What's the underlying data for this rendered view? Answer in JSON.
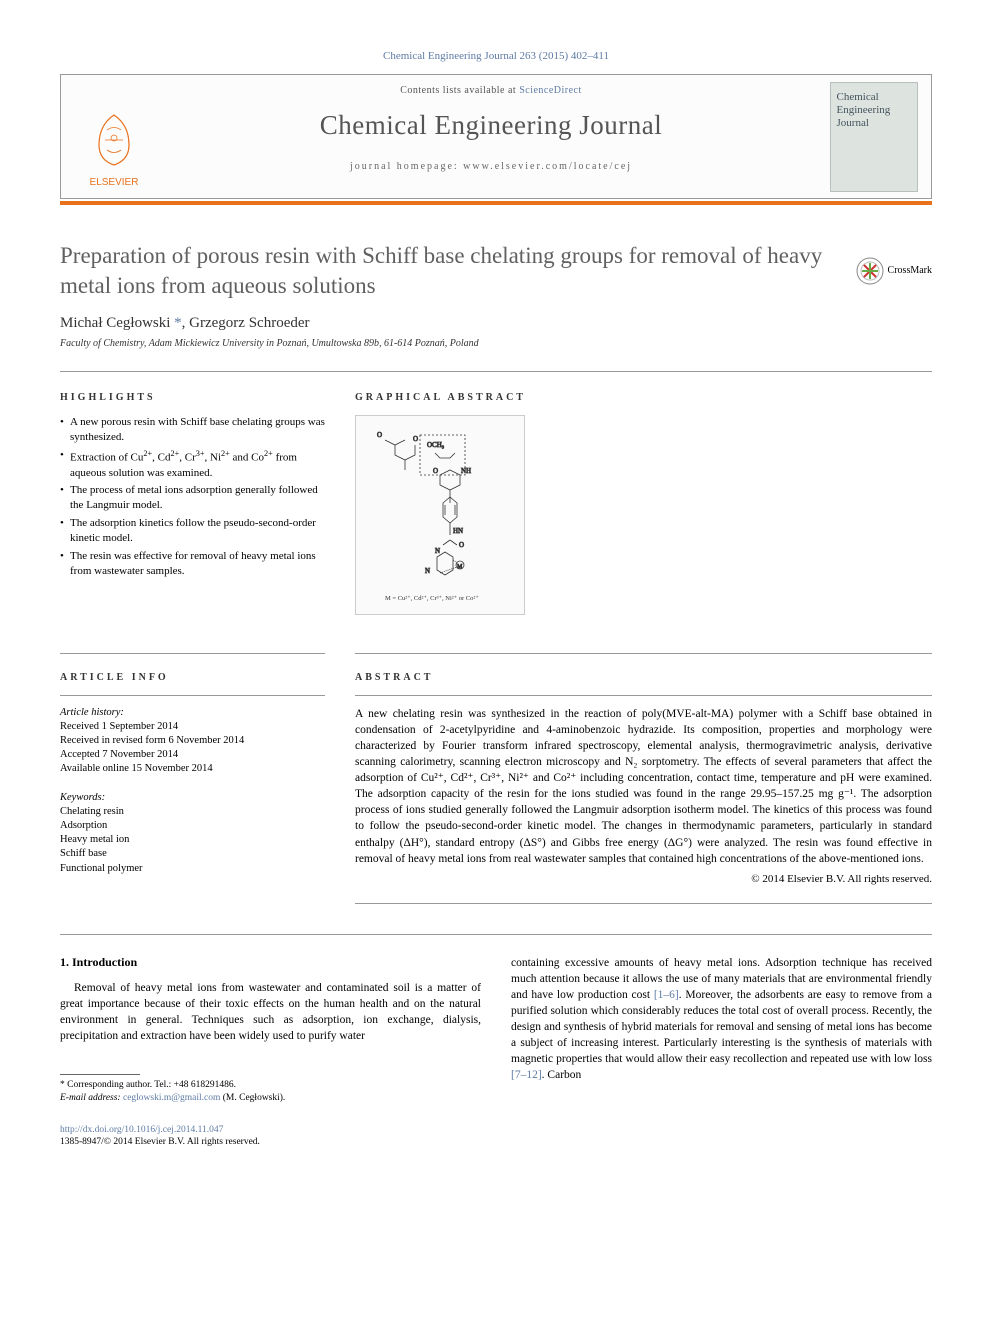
{
  "citation": "Chemical Engineering Journal 263 (2015) 402–411",
  "header": {
    "contents_prefix": "Contents lists available at ",
    "contents_link": "ScienceDirect",
    "journal_name": "Chemical Engineering Journal",
    "homepage_prefix": "journal homepage: ",
    "homepage_url": "www.elsevier.com/locate/cej",
    "publisher": "ELSEVIER",
    "cover_lines": [
      "Chemical",
      "Engineering",
      "Journal"
    ]
  },
  "crossmark_label": "CrossMark",
  "title": "Preparation of porous resin with Schiff base chelating groups for removal of heavy metal ions from aqueous solutions",
  "authors_html": "Michał Cegłowski <a class='corr-star'>*</a>, Grzegorz Schroeder",
  "affiliation": "Faculty of Chemistry, Adam Mickiewicz University in Poznań, Umultowska 89b, 61-614 Poznań, Poland",
  "highlights_label": "HIGHLIGHTS",
  "highlights": [
    "A new porous resin with Schiff base chelating groups was synthesized.",
    "Extraction of Cu<sup>2+</sup>, Cd<sup>2+</sup>, Cr<sup>3+</sup>, Ni<sup>2+</sup> and Co<sup>2+</sup> from aqueous solution was examined.",
    "The process of metal ions adsorption generally followed the Langmuir model.",
    "The adsorption kinetics follow the pseudo-second-order kinetic model.",
    "The resin was effective for removal of heavy metal ions from wastewater samples."
  ],
  "graphical_label": "GRAPHICAL ABSTRACT",
  "ga_caption": "M = Cu²⁺, Cd²⁺, Cr³⁺, Ni²⁺ or Co²⁺",
  "article_info_label": "ARTICLE INFO",
  "history": {
    "label": "Article history:",
    "received": "Received 1 September 2014",
    "revised": "Received in revised form 6 November 2014",
    "accepted": "Accepted 7 November 2014",
    "online": "Available online 15 November 2014"
  },
  "keywords_label": "Keywords:",
  "keywords": [
    "Chelating resin",
    "Adsorption",
    "Heavy metal ion",
    "Schiff base",
    "Functional polymer"
  ],
  "abstract_label": "ABSTRACT",
  "abstract": "A new chelating resin was synthesized in the reaction of poly(MVE-alt-MA) polymer with a Schiff base obtained in condensation of 2-acetylpyridine and 4-aminobenzoic hydrazide. Its composition, properties and morphology were characterized by Fourier transform infrared spectroscopy, elemental analysis, thermogravimetric analysis, derivative scanning calorimetry, scanning electron microscopy and N₂ sorptometry. The effects of several parameters that affect the adsorption of Cu²⁺, Cd²⁺, Cr³⁺, Ni²⁺ and Co²⁺ including concentration, contact time, temperature and pH were examined. The adsorption capacity of the resin for the ions studied was found in the range 29.95–157.25 mg g⁻¹. The adsorption process of ions studied generally followed the Langmuir adsorption isotherm model. The kinetics of this process was found to follow the pseudo-second-order kinetic model. The changes in thermodynamic parameters, particularly in standard enthalpy (ΔH°), standard entropy (ΔS°) and Gibbs free energy (ΔG°) were analyzed. The resin was found effective in removal of heavy metal ions from real wastewater samples that contained high concentrations of the above-mentioned ions.",
  "copyright": "© 2014 Elsevier B.V. All rights reserved.",
  "intro_heading": "1. Introduction",
  "intro_col1": "Removal of heavy metal ions from wastewater and contaminated soil is a matter of great importance because of their toxic effects on the human health and on the natural environment in general. Techniques such as adsorption, ion exchange, dialysis, precipitation and extraction have been widely used to purify water",
  "intro_col2_p1": "containing excessive amounts of heavy metal ions. Adsorption technique has received much attention because it allows the use of many materials that are environmental friendly and have low production cost ",
  "intro_ref1": "[1–6]",
  "intro_col2_p2": ". Moreover, the adsorbents are easy to remove from a purified solution which considerably reduces the total cost of overall process. Recently, the design and synthesis of hybrid materials for removal and sensing of metal ions has become a subject of increasing interest. Particularly interesting is the synthesis of materials with magnetic properties that would allow their easy recollection and repeated use with low loss ",
  "intro_ref2": "[7–12]",
  "intro_col2_p3": ". Carbon",
  "footnote": {
    "corr": "* Corresponding author. Tel.: +48 618291486.",
    "email_label": "E-mail address: ",
    "email": "ceglowski.m@gmail.com",
    "email_who": " (M. Cegłowski)."
  },
  "doi": {
    "url": "http://dx.doi.org/10.1016/j.cej.2014.11.047",
    "issn_copy": "1385-8947/© 2014 Elsevier B.V. All rights reserved."
  },
  "colors": {
    "accent": "#e9711c",
    "link": "#5e7ba5"
  }
}
